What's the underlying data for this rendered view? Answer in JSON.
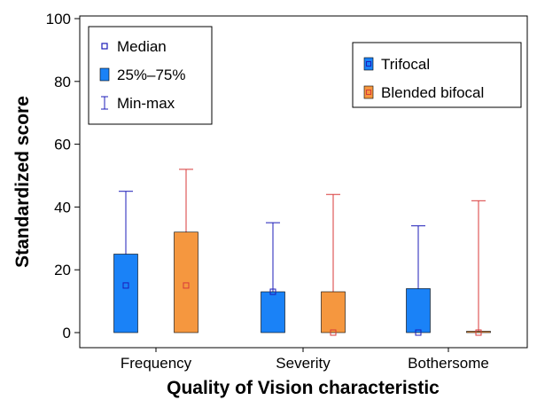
{
  "chart_data": {
    "type": "box",
    "title": "",
    "xlabel": "Quality of Vision characteristic",
    "ylabel": "Standardized score",
    "ylim": [
      0,
      100
    ],
    "yticks": [
      0,
      20,
      40,
      60,
      80,
      100
    ],
    "grid": false,
    "categories": [
      "Frequency",
      "Severity",
      "Bothersome"
    ],
    "series": [
      {
        "name": "Trifocal",
        "color": "#1a82f7",
        "whisker_color": "#1c1cb8",
        "median": [
          15,
          13,
          0
        ],
        "q1": [
          0,
          0,
          0
        ],
        "q3": [
          25,
          13,
          14
        ],
        "min": [
          0,
          0,
          0
        ],
        "max": [
          45,
          35,
          34
        ]
      },
      {
        "name": "Blended bifocal",
        "color": "#f5973f",
        "whisker_color": "#d83a3a",
        "median": [
          15,
          0,
          0
        ],
        "q1": [
          0,
          0,
          0
        ],
        "q3": [
          32,
          13,
          0
        ],
        "min": [
          0,
          0,
          0
        ],
        "max": [
          52,
          44,
          42
        ]
      }
    ],
    "legends": [
      {
        "placement": "top-left",
        "items": [
          {
            "label": "Median",
            "symbol": "median"
          },
          {
            "label": "25%–75%",
            "symbol": "box"
          },
          {
            "label": "Min-max",
            "symbol": "whisker"
          }
        ]
      },
      {
        "placement": "top-right",
        "items": [
          {
            "label": "Trifocal",
            "symbol": "series-0"
          },
          {
            "label": "Blended bifocal",
            "symbol": "series-1"
          }
        ]
      }
    ]
  }
}
